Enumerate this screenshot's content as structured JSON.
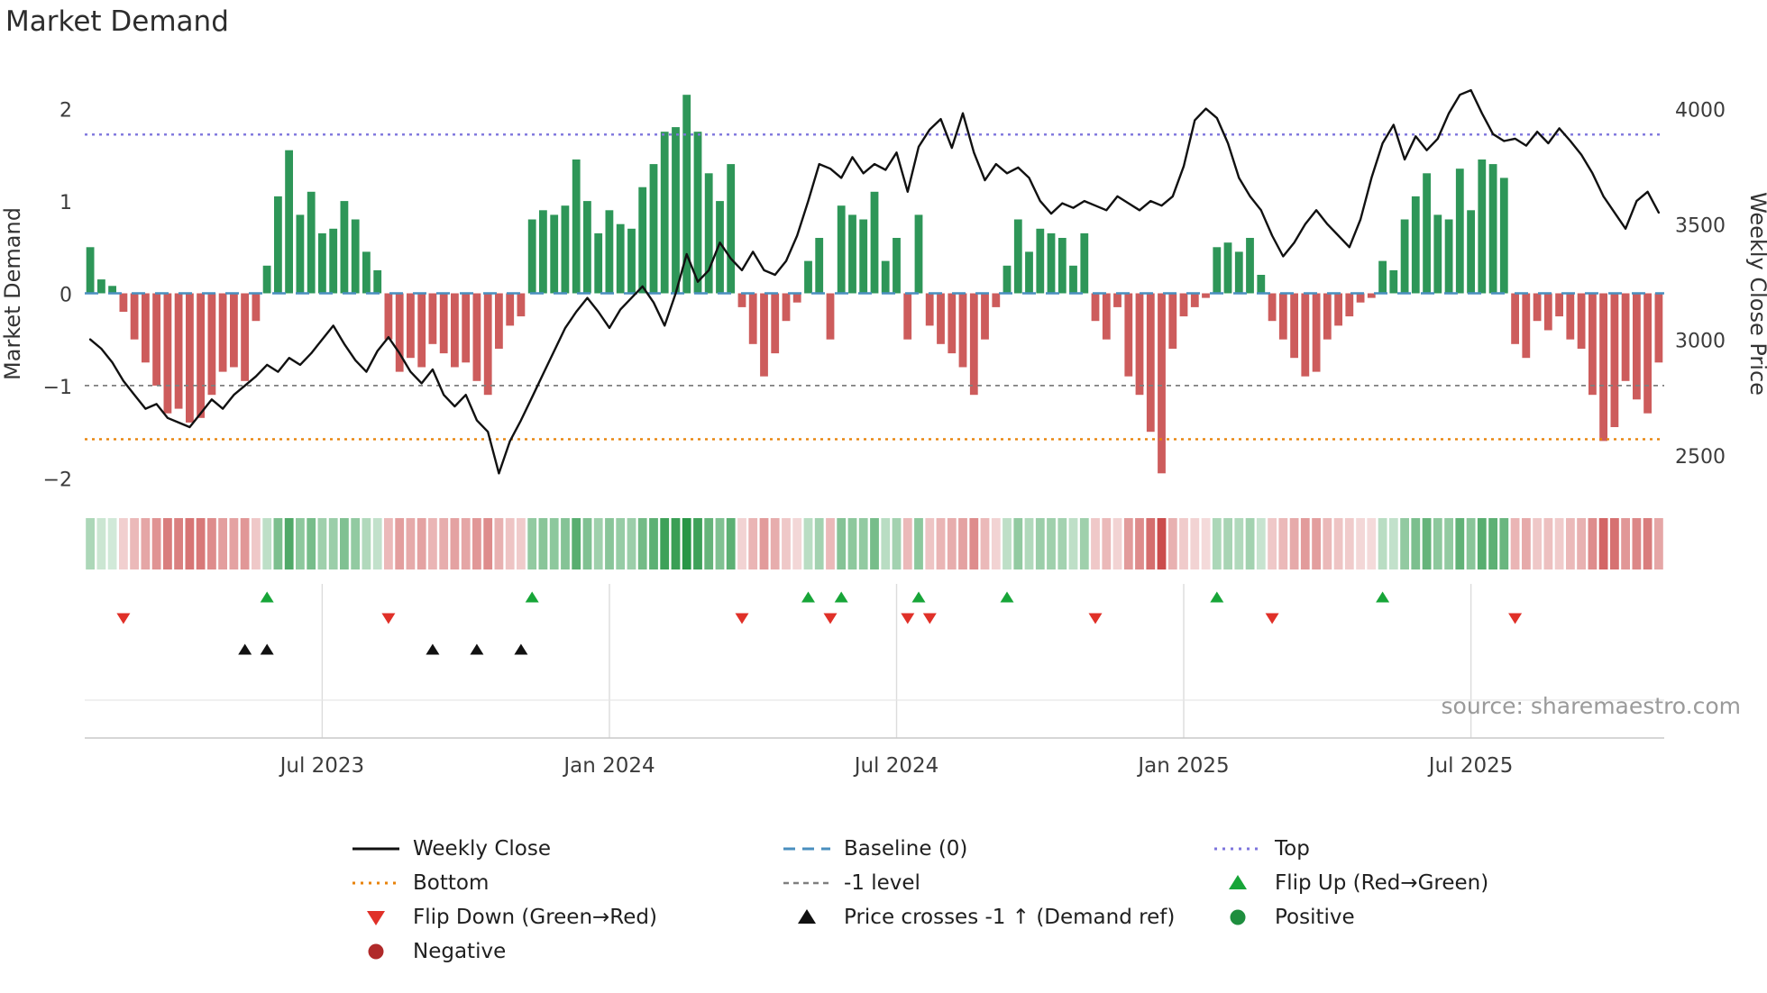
{
  "title": "Market Demand",
  "source": "source: sharemaestro.com",
  "axes": {
    "left_label": "Market Demand",
    "right_label": "Weekly Close Price",
    "left_tick_labels": [
      "2",
      "1",
      "0",
      "−1",
      "−2"
    ],
    "left_tick_values": [
      2,
      1,
      0,
      -1,
      -2
    ],
    "right_tick_labels": [
      "4000",
      "3500",
      "3000",
      "2500"
    ],
    "right_tick_values": [
      4000,
      3500,
      3000,
      2500
    ],
    "x_tick_labels": [
      "Jul 2023",
      "Jan 2024",
      "Jul 2024",
      "Jan 2025",
      "Jul 2025"
    ],
    "x_tick_weeks": [
      21,
      47,
      73,
      99,
      125
    ]
  },
  "colors": {
    "positive": "#2e9658",
    "negative": "#cd5c5c",
    "price_line": "#111111",
    "baseline": "#4a8fbf",
    "top_line": "#7d74dd",
    "bottom_line": "#e8830a",
    "minus1_line": "#7f7f7f",
    "flip_up": "#17a538",
    "flip_down": "#e03028",
    "cross_marker": "#111111",
    "positive_dot": "#1e8e3e",
    "negative_dot": "#b02a2a"
  },
  "chart_data": {
    "type": "bar+line",
    "title": "Market Demand",
    "x_unit": "week",
    "n_weeks": 143,
    "demand_ylim": [
      -2.25,
      2.25
    ],
    "price_ylim": [
      2300,
      4100
    ],
    "reference_levels": {
      "baseline": 0,
      "top": 1.72,
      "bottom": -1.58,
      "minus1": -1
    },
    "demand": [
      0.5,
      0.15,
      0.08,
      -0.2,
      -0.5,
      -0.75,
      -1.0,
      -1.3,
      -1.25,
      -1.4,
      -1.35,
      -1.1,
      -0.85,
      -0.8,
      -0.95,
      -0.3,
      0.3,
      1.05,
      1.55,
      0.85,
      1.1,
      0.65,
      0.7,
      1.0,
      0.8,
      0.45,
      0.25,
      -0.5,
      -0.85,
      -0.7,
      -0.8,
      -0.55,
      -0.65,
      -0.8,
      -0.75,
      -0.95,
      -1.1,
      -0.6,
      -0.35,
      -0.25,
      0.8,
      0.9,
      0.85,
      0.95,
      1.45,
      1.0,
      0.65,
      0.9,
      0.75,
      0.7,
      1.15,
      1.4,
      1.75,
      1.8,
      2.15,
      1.75,
      1.3,
      1.0,
      1.4,
      -0.15,
      -0.55,
      -0.9,
      -0.65,
      -0.3,
      -0.1,
      0.35,
      0.6,
      -0.5,
      0.95,
      0.85,
      0.8,
      1.1,
      0.35,
      0.6,
      -0.5,
      0.85,
      -0.35,
      -0.55,
      -0.65,
      -0.8,
      -1.1,
      -0.5,
      -0.15,
      0.3,
      0.8,
      0.45,
      0.7,
      0.65,
      0.6,
      0.3,
      0.65,
      -0.3,
      -0.5,
      -0.15,
      -0.9,
      -1.1,
      -1.5,
      -1.95,
      -0.6,
      -0.25,
      -0.15,
      -0.05,
      0.5,
      0.55,
      0.45,
      0.6,
      0.2,
      -0.3,
      -0.5,
      -0.7,
      -0.9,
      -0.85,
      -0.5,
      -0.35,
      -0.25,
      -0.1,
      -0.05,
      0.35,
      0.25,
      0.8,
      1.05,
      1.3,
      0.85,
      0.8,
      1.35,
      0.9,
      1.45,
      1.4,
      1.25,
      -0.55,
      -0.7,
      -0.3,
      -0.4,
      -0.25,
      -0.5,
      -0.6,
      -1.1,
      -1.6,
      -1.45,
      -0.95,
      -1.15,
      -1.3,
      -0.75
    ],
    "price": [
      3000,
      2960,
      2900,
      2820,
      2760,
      2700,
      2720,
      2660,
      2640,
      2620,
      2680,
      2740,
      2700,
      2760,
      2800,
      2840,
      2890,
      2860,
      2920,
      2890,
      2940,
      3000,
      3060,
      2980,
      2910,
      2860,
      2950,
      3010,
      2940,
      2860,
      2810,
      2870,
      2760,
      2710,
      2760,
      2650,
      2600,
      2420,
      2560,
      2650,
      2750,
      2850,
      2950,
      3050,
      3120,
      3180,
      3120,
      3050,
      3130,
      3180,
      3230,
      3160,
      3060,
      3200,
      3370,
      3250,
      3300,
      3420,
      3350,
      3300,
      3380,
      3300,
      3280,
      3340,
      3450,
      3600,
      3760,
      3740,
      3700,
      3790,
      3720,
      3760,
      3735,
      3810,
      3640,
      3835,
      3910,
      3955,
      3830,
      3980,
      3810,
      3690,
      3760,
      3720,
      3745,
      3700,
      3600,
      3545,
      3590,
      3570,
      3600,
      3580,
      3560,
      3620,
      3590,
      3560,
      3600,
      3580,
      3620,
      3750,
      3950,
      4000,
      3960,
      3850,
      3700,
      3620,
      3560,
      3450,
      3360,
      3420,
      3500,
      3560,
      3500,
      3450,
      3400,
      3520,
      3700,
      3850,
      3930,
      3780,
      3880,
      3820,
      3870,
      3980,
      4060,
      4080,
      3980,
      3890,
      3860,
      3870,
      3840,
      3900,
      3850,
      3915,
      3860,
      3800,
      3720,
      3620,
      3550,
      3480,
      3600,
      3640,
      3550
    ],
    "flip_up_weeks": [
      16,
      40,
      65,
      68,
      75,
      83,
      102,
      117
    ],
    "flip_down_weeks": [
      3,
      27,
      59,
      67,
      74,
      76,
      91,
      107,
      129
    ],
    "price_cross_weeks": [
      14,
      16,
      31,
      35,
      39
    ]
  },
  "legend": {
    "items": [
      {
        "label": "Weekly Close",
        "type": "line-solid",
        "color": "#111111"
      },
      {
        "label": "Baseline (0)",
        "type": "line-dashed",
        "color": "#4a8fbf"
      },
      {
        "label": "Top",
        "type": "line-dotted",
        "color": "#7d74dd"
      },
      {
        "label": "Bottom",
        "type": "line-dotted",
        "color": "#e8830a"
      },
      {
        "label": "-1 level",
        "type": "line-dashed-small",
        "color": "#7f7f7f"
      },
      {
        "label": "Flip Up (Red→Green)",
        "type": "triangle-up",
        "color": "#17a538"
      },
      {
        "label": "Flip Down (Green→Red)",
        "type": "triangle-down",
        "color": "#e03028"
      },
      {
        "label": "Price crosses -1 ↑ (Demand ref)",
        "type": "triangle-up",
        "color": "#111111"
      },
      {
        "label": "Positive",
        "type": "circle",
        "color": "#1e8e3e"
      },
      {
        "label": "Negative",
        "type": "circle",
        "color": "#b02a2a"
      }
    ]
  }
}
